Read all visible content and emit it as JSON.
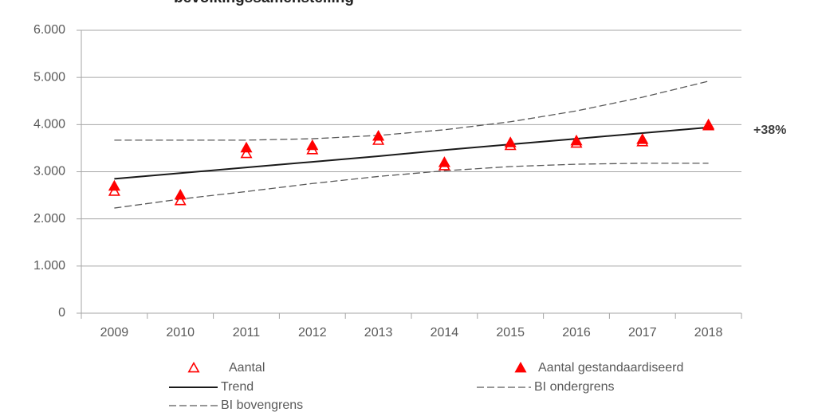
{
  "chart_data": {
    "type": "line",
    "title": "bevolkingssamenstelling",
    "annotation": "+38%",
    "categories": [
      "2009",
      "2010",
      "2011",
      "2012",
      "2013",
      "2014",
      "2015",
      "2016",
      "2017",
      "2018"
    ],
    "ylim": [
      0,
      6000
    ],
    "yticks": [
      0,
      {
        "value": 1000,
        "label": "1.000"
      },
      {
        "value": 2000,
        "label": "2.000"
      },
      {
        "value": 3000,
        "label": "3.000"
      },
      {
        "value": 4000,
        "label": "4.000"
      },
      {
        "value": 5000,
        "label": "5.000"
      },
      {
        "value": 6000,
        "label": "6.000"
      }
    ],
    "grid": true,
    "legend": "bottom",
    "series": [
      {
        "name": "Aantal",
        "color": "#ff0000",
        "style": "marker-hollow",
        "values": [
          2580,
          2380,
          3380,
          3460,
          3660,
          3120,
          3550,
          3600,
          3630,
          3970
        ]
      },
      {
        "name": "Aantal gestandaardiseerd",
        "color": "#ff0000",
        "style": "marker-filled",
        "values": [
          2690,
          2500,
          3500,
          3550,
          3750,
          3190,
          3610,
          3650,
          3680,
          3990
        ]
      },
      {
        "name": "Trend",
        "color": "#1a1a1a",
        "style": "solid",
        "values": [
          2850,
          2970,
          3090,
          3210,
          3330,
          3460,
          3580,
          3700,
          3820,
          3940
        ]
      },
      {
        "name": "BI ondergrens",
        "color": "#595959",
        "style": "dashed",
        "values": [
          2230,
          2420,
          2580,
          2750,
          2900,
          3020,
          3110,
          3160,
          3180,
          3180
        ]
      },
      {
        "name": "BI bovengrens",
        "color": "#595959",
        "style": "dashed",
        "values": [
          3670,
          3670,
          3670,
          3700,
          3770,
          3890,
          4060,
          4290,
          4580,
          4920
        ]
      }
    ]
  }
}
